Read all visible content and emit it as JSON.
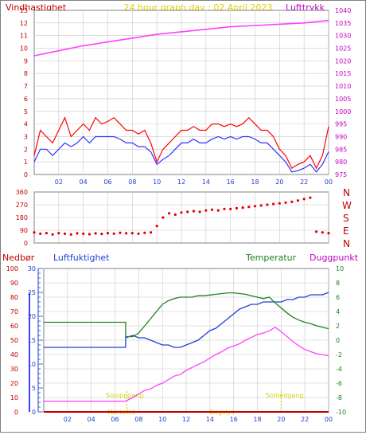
{
  "header": {
    "left_label": "Vindhastighet",
    "title": "24 hour graph day : 02 April 2023",
    "right_label": "Lufttrykk"
  },
  "direction_labels": [
    "N",
    "W",
    "S",
    "E",
    "N"
  ],
  "bottom_header": {
    "precip_label": "Nedbør",
    "humidity_label": "Luftfuktighet",
    "temp_label": "Temperatur",
    "dew_label": "Duggpunkt"
  },
  "annotations": {
    "sunrise": "Soloppgang",
    "sunset": "Solnedgang",
    "label_1": "Mørketid",
    "label_2": "Dagslys"
  },
  "colors": {
    "wind_gust": "#ff0000",
    "wind_avg": "#3030ff",
    "pressure": "#ff40ff",
    "direction": "#e00000",
    "humidity": "#2040d0",
    "temperature": "#208020",
    "dewpoint": "#ff40ff",
    "precip": "#c00000",
    "grid": "#c8c8c8",
    "annotation": "#e0d000"
  },
  "chart_data": [
    {
      "type": "line",
      "panel": "wind-pressure",
      "x_ticks": [
        "02",
        "04",
        "06",
        "08",
        "10",
        "12",
        "14",
        "16",
        "18",
        "20",
        "22",
        "00"
      ],
      "xlim": [
        0,
        24
      ],
      "y_left": {
        "label": "Vindhastighet",
        "ticks": [
          0,
          1,
          2,
          3,
          4,
          5,
          6,
          7,
          8,
          9,
          10,
          11,
          12,
          13
        ],
        "ylim": [
          0,
          13
        ]
      },
      "y_right": {
        "label": "Lufttrykk",
        "ticks": [
          975,
          980,
          985,
          990,
          995,
          1000,
          1005,
          1010,
          1015,
          1020,
          1025,
          1030,
          1035,
          1040
        ],
        "ylim": [
          975,
          1040
        ]
      },
      "series": [
        {
          "role": "wind_gust",
          "axis": "left",
          "x": [
            0,
            0.5,
            1,
            1.5,
            2,
            2.5,
            3,
            3.5,
            4,
            4.5,
            5,
            5.5,
            6,
            6.5,
            7,
            7.5,
            8,
            8.5,
            9,
            9.5,
            10,
            10.5,
            11,
            11.5,
            12,
            12.5,
            13,
            13.5,
            14,
            14.5,
            15,
            15.5,
            16,
            16.5,
            17,
            17.5,
            18,
            18.5,
            19,
            19.5,
            20,
            20.5,
            21,
            21.5,
            22,
            22.5,
            23,
            23.5,
            24
          ],
          "values": [
            1.5,
            3.5,
            3,
            2.5,
            3.5,
            4.5,
            3,
            3.5,
            4,
            3.5,
            4.5,
            4,
            4.2,
            4.5,
            4,
            3.5,
            3.5,
            3.2,
            3.5,
            2.5,
            1,
            2,
            2.5,
            3,
            3.5,
            3.5,
            3.8,
            3.5,
            3.5,
            4,
            4,
            3.8,
            4,
            3.8,
            4,
            4.5,
            4,
            3.5,
            3.5,
            3,
            2,
            1.5,
            0.5,
            0.8,
            1,
            1.5,
            0.5,
            1.5,
            3.8
          ]
        },
        {
          "role": "wind_avg",
          "axis": "left",
          "x": [
            0,
            0.5,
            1,
            1.5,
            2,
            2.5,
            3,
            3.5,
            4,
            4.5,
            5,
            5.5,
            6,
            6.5,
            7,
            7.5,
            8,
            8.5,
            9,
            9.5,
            10,
            10.5,
            11,
            11.5,
            12,
            12.5,
            13,
            13.5,
            14,
            14.5,
            15,
            15.5,
            16,
            16.5,
            17,
            17.5,
            18,
            18.5,
            19,
            19.5,
            20,
            20.5,
            21,
            21.5,
            22,
            22.5,
            23,
            23.5,
            24
          ],
          "values": [
            1,
            2,
            2,
            1.5,
            2,
            2.5,
            2.2,
            2.5,
            3,
            2.5,
            3,
            3,
            3,
            3,
            2.8,
            2.5,
            2.5,
            2.2,
            2.2,
            1.8,
            0.8,
            1.2,
            1.5,
            2,
            2.5,
            2.5,
            2.8,
            2.5,
            2.5,
            2.8,
            3,
            2.8,
            3,
            2.8,
            3,
            3,
            2.8,
            2.5,
            2.5,
            2,
            1.5,
            1,
            0.2,
            0.3,
            0.5,
            0.8,
            0.2,
            0.8,
            1.8
          ]
        },
        {
          "role": "pressure",
          "axis": "right",
          "x": [
            0,
            2,
            4,
            6,
            8,
            10,
            12,
            14,
            16,
            18,
            20,
            22,
            24
          ],
          "values": [
            1022,
            1024,
            1026,
            1027.5,
            1029,
            1030.5,
            1031.5,
            1032.5,
            1033.5,
            1034,
            1034.5,
            1035,
            1036
          ]
        }
      ]
    },
    {
      "type": "scatter",
      "panel": "wind-direction",
      "xlim": [
        0,
        24
      ],
      "y_ticks": [
        0,
        90,
        180,
        270,
        360
      ],
      "ylim": [
        0,
        360
      ],
      "x": [
        0,
        0.5,
        1,
        1.5,
        2,
        2.5,
        3,
        3.5,
        4,
        4.5,
        5,
        5.5,
        6,
        6.5,
        7,
        7.5,
        8,
        8.5,
        9,
        9.5,
        10,
        10.5,
        11,
        11.5,
        12,
        12.5,
        13,
        13.5,
        14,
        14.5,
        15,
        15.5,
        16,
        16.5,
        17,
        17.5,
        18,
        18.5,
        19,
        19.5,
        20,
        20.5,
        21,
        21.5,
        22,
        22.5,
        23,
        23.5,
        24
      ],
      "values": [
        75,
        65,
        70,
        60,
        70,
        65,
        60,
        68,
        65,
        62,
        68,
        64,
        70,
        66,
        72,
        68,
        70,
        66,
        72,
        75,
        120,
        180,
        210,
        200,
        215,
        220,
        225,
        220,
        230,
        235,
        230,
        240,
        240,
        245,
        250,
        255,
        260,
        265,
        270,
        275,
        280,
        285,
        290,
        300,
        310,
        320,
        80,
        75,
        70
      ]
    },
    {
      "type": "line",
      "panel": "humidity-temperature",
      "x_ticks": [
        "02",
        "04",
        "06",
        "08",
        "10",
        "12",
        "14",
        "16",
        "18",
        "20",
        "22",
        "00"
      ],
      "xlim": [
        0,
        24
      ],
      "y_precip": {
        "label": "Nedbør",
        "ticks": [
          0,
          10,
          20,
          30,
          40,
          50,
          60,
          70,
          80,
          90,
          100
        ],
        "ylim": [
          0,
          100
        ]
      },
      "y_humidity": {
        "label": "Luftfuktighet",
        "ticks": [
          0,
          5,
          10,
          15,
          20,
          25,
          30
        ],
        "ylim": [
          0,
          30
        ]
      },
      "y_temp": {
        "label": "Temperatur",
        "ticks": [
          -10,
          -8,
          -6,
          -4,
          -2,
          0,
          2,
          4,
          6,
          8,
          10
        ],
        "ylim": [
          -10,
          10
        ]
      },
      "series": [
        {
          "role": "humidity",
          "axis": "humidity",
          "x": [
            0,
            6.9,
            6.9,
            7.5,
            8,
            8.5,
            9,
            9.5,
            10,
            10.5,
            11,
            11.5,
            12,
            12.5,
            13,
            13.5,
            14,
            14.5,
            15,
            15.5,
            16,
            16.5,
            17,
            17.5,
            18,
            18.5,
            19,
            19.5,
            20,
            20.5,
            21,
            21.5,
            22,
            22.5,
            23,
            23.5,
            24
          ],
          "values": [
            13.5,
            13.5,
            15.5,
            16,
            15.5,
            15.5,
            15,
            14.5,
            14,
            14,
            13.5,
            13.5,
            14,
            14.5,
            15,
            16,
            17,
            17.5,
            18.5,
            19.5,
            20.5,
            21.5,
            22,
            22.5,
            22.5,
            23,
            23,
            23,
            23,
            23.5,
            23.5,
            24,
            24,
            24.5,
            24.5,
            24.5,
            25
          ]
        },
        {
          "role": "temperature",
          "axis": "temp",
          "x": [
            0,
            6.9,
            6.9,
            7.5,
            8,
            8.5,
            9,
            9.5,
            10,
            10.5,
            11,
            11.5,
            12,
            12.5,
            13,
            13.5,
            14,
            14.5,
            15,
            15.5,
            16,
            16.5,
            17,
            17.5,
            18,
            18.5,
            19,
            19.5,
            20,
            20.5,
            21,
            21.5,
            22,
            22.5,
            23,
            23.5,
            24
          ],
          "values": [
            2.5,
            2.5,
            0.5,
            0.5,
            1,
            2,
            3,
            4,
            5,
            5.5,
            5.8,
            6,
            6,
            6,
            6.2,
            6.2,
            6.3,
            6.4,
            6.5,
            6.6,
            6.6,
            6.5,
            6.4,
            6.2,
            6,
            5.8,
            6,
            5.2,
            4.5,
            3.8,
            3.2,
            2.8,
            2.5,
            2.3,
            2,
            1.8,
            1.6
          ]
        },
        {
          "role": "dewpoint",
          "axis": "temp",
          "x": [
            0,
            6.9,
            7.5,
            8,
            8.5,
            9,
            9.5,
            10,
            10.5,
            11,
            11.5,
            12,
            12.5,
            13,
            13.5,
            14,
            14.5,
            15,
            15.5,
            16,
            16.5,
            17,
            17.5,
            18,
            18.5,
            19,
            19.5,
            20,
            20.5,
            21,
            21.5,
            22,
            22.5,
            23,
            23.5,
            24
          ],
          "values": [
            -8.5,
            -8.5,
            -8,
            -7.5,
            -7,
            -6.8,
            -6.3,
            -6,
            -5.5,
            -5,
            -4.8,
            -4.2,
            -3.8,
            -3.4,
            -3,
            -2.5,
            -2,
            -1.6,
            -1.1,
            -0.8,
            -0.5,
            0,
            0.4,
            0.8,
            1,
            1.3,
            1.8,
            1.2,
            0.5,
            -0.2,
            -0.8,
            -1.3,
            -1.6,
            -1.9,
            -2,
            -2.2
          ]
        },
        {
          "role": "precip",
          "axis": "precip",
          "x": [
            0,
            24
          ],
          "values": [
            0,
            0
          ]
        }
      ]
    }
  ]
}
